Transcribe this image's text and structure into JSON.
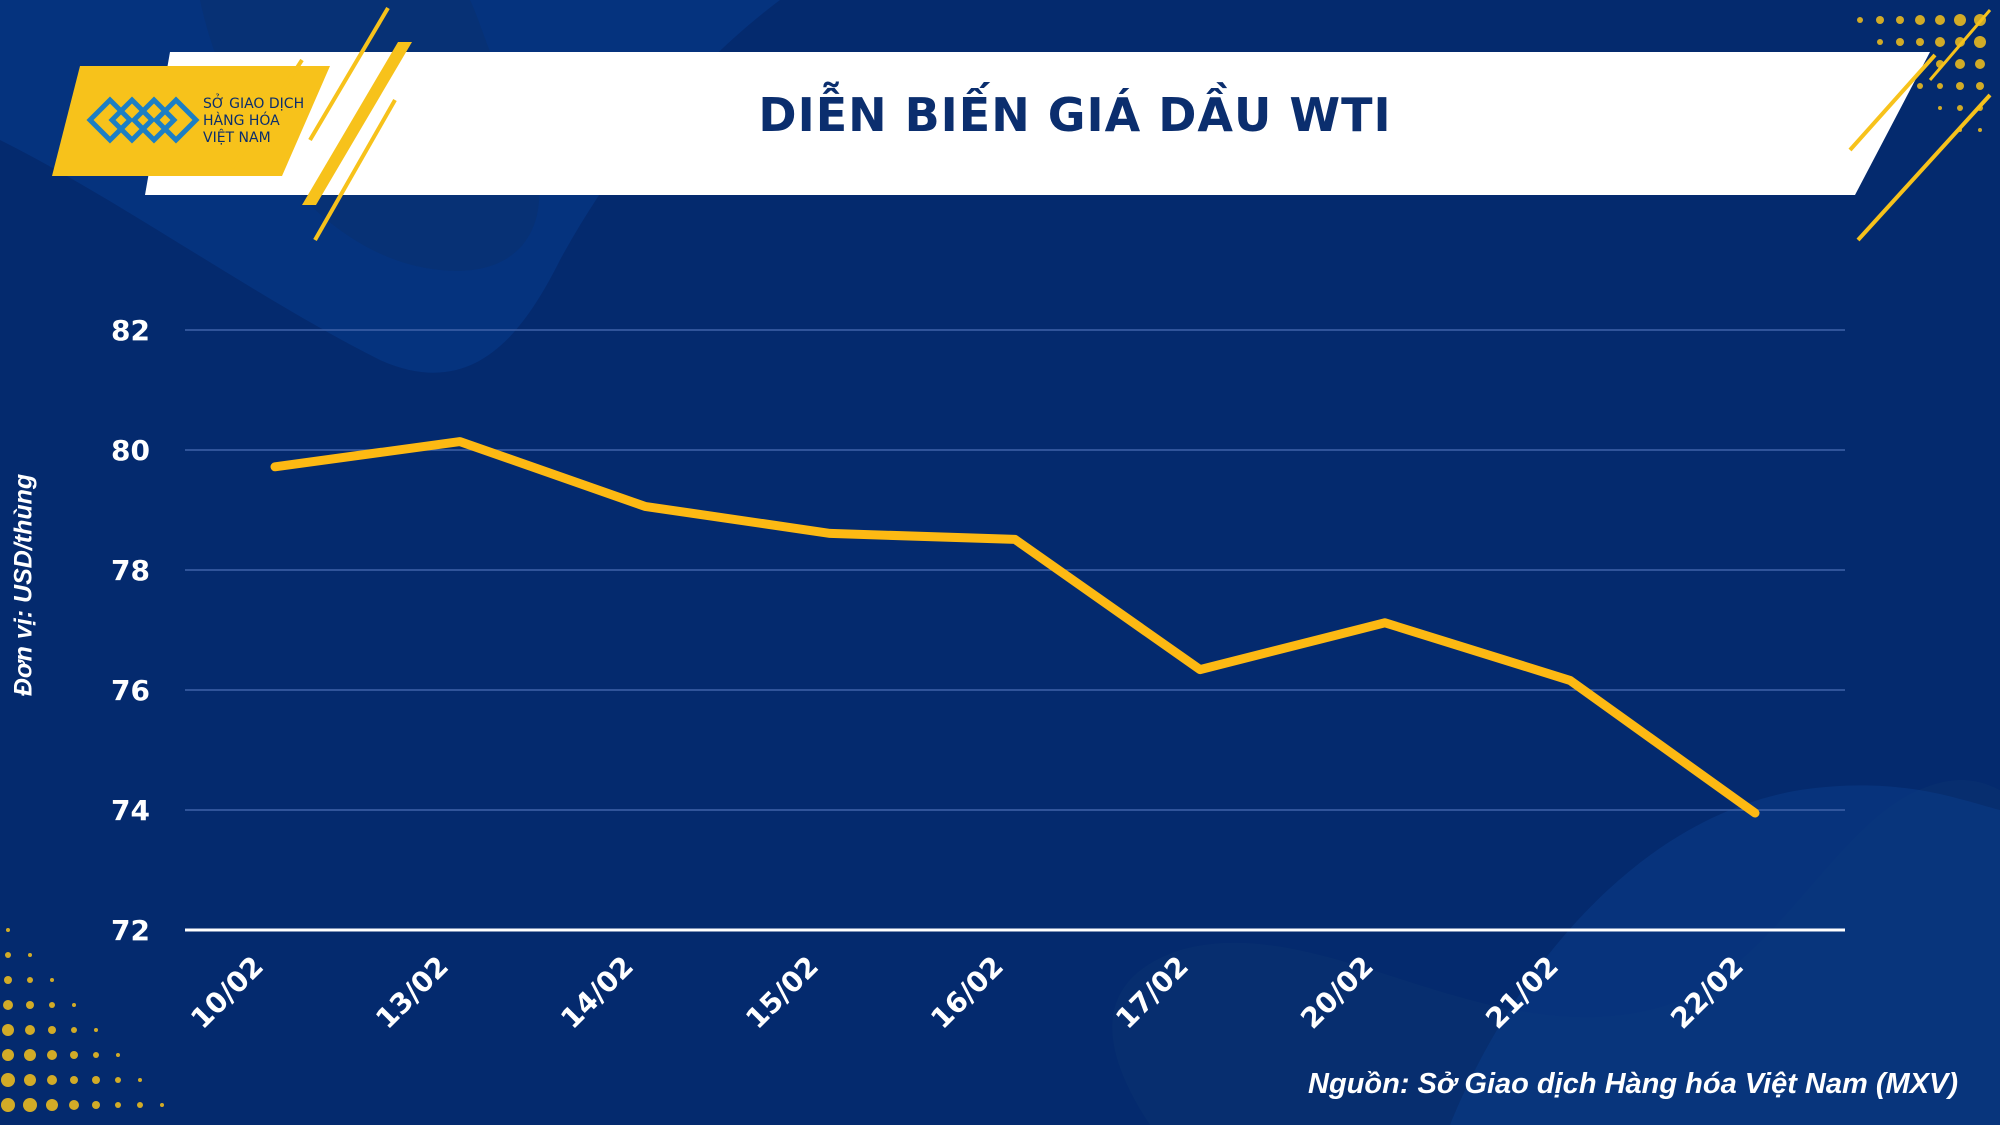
{
  "header": {
    "title": "DIỄN BIẾN GIÁ DẦU WTI",
    "logo_lines": [
      "SỞ GIAO DỊCH",
      "HÀNG HÓA",
      "VIỆT NAM"
    ]
  },
  "footer": {
    "source": "Nguồn: Sở Giao dịch Hàng hóa Việt Nam (MXV)"
  },
  "colors": {
    "background": "#042a6e",
    "line": "#fdb913",
    "accent": "#f7c21b",
    "banner": "#ffffff",
    "title_text": "#0b2e6e"
  },
  "chart_data": {
    "type": "line",
    "title": "DIỄN BIẾN GIÁ DẦU WTI",
    "xlabel": "",
    "ylabel": "Đơn vị: USD/thùng",
    "categories": [
      "10/02",
      "13/02",
      "14/02",
      "15/02",
      "16/02",
      "17/02",
      "20/02",
      "21/02",
      "22/02"
    ],
    "series": [
      {
        "values": [
          79.72,
          80.14,
          79.06,
          78.61,
          78.51,
          76.34,
          77.12,
          76.16,
          73.95
        ]
      }
    ],
    "ylim": [
      72,
      82
    ],
    "yticks": [
      72,
      74,
      76,
      78,
      80,
      82
    ],
    "grid": true,
    "legend": "none"
  }
}
